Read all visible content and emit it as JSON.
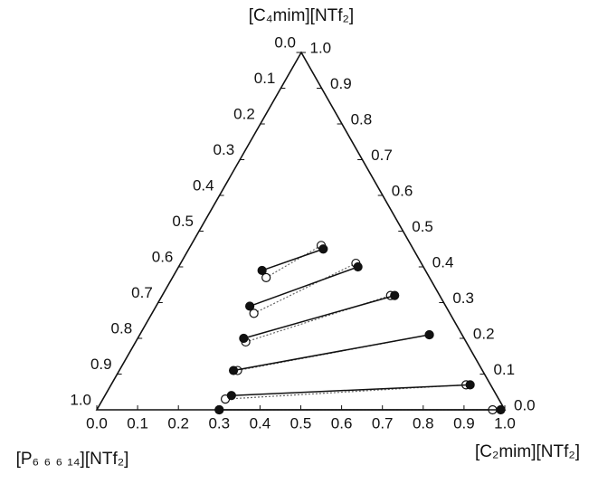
{
  "chart_data": {
    "type": "ternary",
    "top_label": "[C₄mim][NTf₂]",
    "left_label": "[P₆ ₆ ₆ ₁₄][NTf₂]",
    "right_label": "[C₂mim][NTf₂]",
    "bottom_ticks": [
      {
        "value": 0,
        "label": "0.0"
      },
      {
        "value": 0.1,
        "label": "0.1"
      },
      {
        "value": 0.2,
        "label": "0.2"
      },
      {
        "value": 0.3,
        "label": "0.3"
      },
      {
        "value": 0.4,
        "label": "0.4"
      },
      {
        "value": 0.5,
        "label": "0.5"
      },
      {
        "value": 0.6,
        "label": "0.6"
      },
      {
        "value": 0.7,
        "label": "0.7"
      },
      {
        "value": 0.8,
        "label": "0.8"
      },
      {
        "value": 0.9,
        "label": "0.9"
      },
      {
        "value": 1,
        "label": "1.0"
      }
    ],
    "left_ticks": [
      {
        "value": 0,
        "label": "0.0"
      },
      {
        "value": 0.1,
        "label": "0.1"
      },
      {
        "value": 0.2,
        "label": "0.2"
      },
      {
        "value": 0.3,
        "label": "0.3"
      },
      {
        "value": 0.4,
        "label": "0.4"
      },
      {
        "value": 0.5,
        "label": "0.5"
      },
      {
        "value": 0.6,
        "label": "0.6"
      },
      {
        "value": 0.7,
        "label": "0.7"
      },
      {
        "value": 0.8,
        "label": "0.8"
      },
      {
        "value": 0.9,
        "label": "0.9"
      },
      {
        "value": 1,
        "label": "1.0"
      }
    ],
    "right_ticks": [
      {
        "value": 1,
        "label": "1.0"
      },
      {
        "value": 0.9,
        "label": "0.9"
      },
      {
        "value": 0.8,
        "label": "0.8"
      },
      {
        "value": 0.7,
        "label": "0.7"
      },
      {
        "value": 0.6,
        "label": "0.6"
      },
      {
        "value": 0.5,
        "label": "0.5"
      },
      {
        "value": 0.4,
        "label": "0.4"
      },
      {
        "value": 0.3,
        "label": "0.3"
      },
      {
        "value": 0.2,
        "label": "0.2"
      },
      {
        "value": 0.1,
        "label": "0.1"
      },
      {
        "value": 0,
        "label": "0.0"
      }
    ],
    "experimental": [
      {
        "x": [
          0.21,
          0.33
        ],
        "y": [
          0.39,
          0.45
        ]
      },
      {
        "x": [
          0.23,
          0.44
        ],
        "y": [
          0.29,
          0.4
        ]
      },
      {
        "x": [
          0.26,
          0.57
        ],
        "y": [
          0.2,
          0.32
        ]
      },
      {
        "x": [
          0.28,
          0.71
        ],
        "y": [
          0.11,
          0.21
        ]
      },
      {
        "x": [
          0.31,
          0.88
        ],
        "y": [
          0.04,
          0.07
        ]
      },
      {
        "x": [
          0.3,
          0.99
        ],
        "y": [
          0,
          0
        ]
      }
    ],
    "calculated": [
      {
        "x": [
          0.23,
          0.32
        ],
        "y": [
          0.37,
          0.46
        ]
      },
      {
        "x": [
          0.25,
          0.43
        ],
        "y": [
          0.27,
          0.41
        ]
      },
      {
        "x": [
          0.27,
          0.56
        ],
        "y": [
          0.19,
          0.32
        ]
      },
      {
        "x": [
          0.29,
          0.71
        ],
        "y": [
          0.11,
          0.21
        ]
      },
      {
        "x": [
          0.3,
          0.87
        ],
        "y": [
          0.03,
          0.07
        ]
      },
      {
        "x": [
          0.3,
          0.97
        ],
        "y": [
          0,
          0
        ]
      }
    ]
  }
}
